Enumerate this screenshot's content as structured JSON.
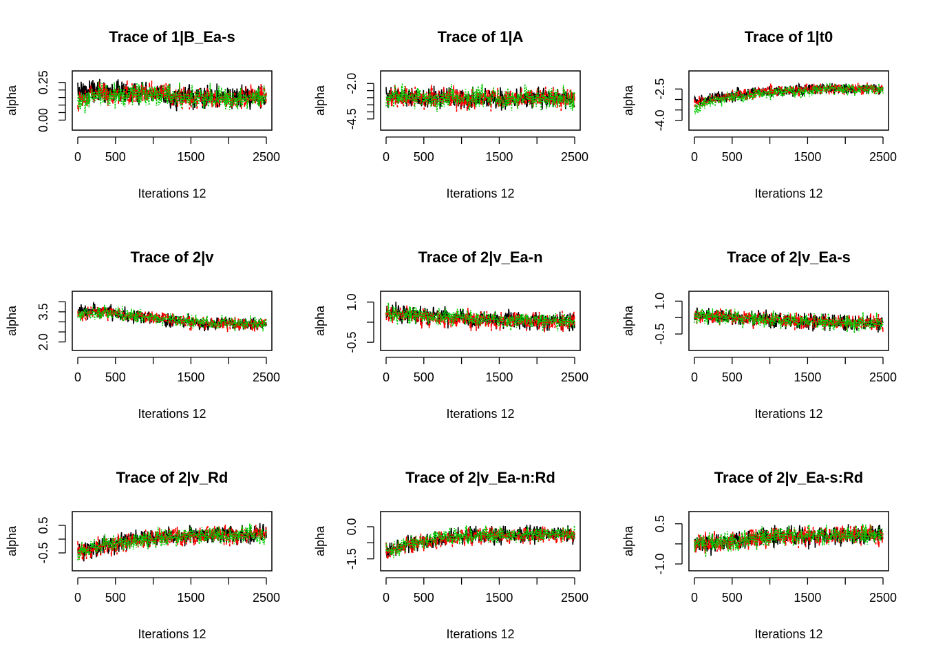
{
  "chart_data": [
    {
      "type": "line",
      "title": "Trace of 1|B_Ea-s",
      "xlabel": "Iterations 12",
      "ylabel": "alpha",
      "xlim": [
        0,
        2500
      ],
      "ylim": [
        -0.03,
        0.29
      ],
      "x_ticks": [
        0,
        500,
        1000,
        1500,
        2000,
        2500
      ],
      "x_tick_labels": [
        "0",
        "500",
        "",
        "1500",
        "",
        "2500"
      ],
      "y_ticks": [
        0.0,
        0.05,
        0.1,
        0.15,
        0.2,
        0.25
      ],
      "y_tick_labels": [
        "0.00",
        "",
        "",
        "",
        "",
        "0.25"
      ],
      "series": [
        {
          "color": "#000000",
          "style": "solid",
          "values": [
            0.19,
            0.2,
            0.19,
            0.18,
            0.17,
            0.15,
            0.15,
            0.15,
            0.15,
            0.16,
            0.15
          ]
        },
        {
          "color": "#ff0000",
          "style": "dashed",
          "values": [
            0.12,
            0.18,
            0.18,
            0.18,
            0.18,
            0.16,
            0.15,
            0.15,
            0.14,
            0.15,
            0.16
          ]
        },
        {
          "color": "#00cd00",
          "style": "dotted",
          "values": [
            0.1,
            0.16,
            0.17,
            0.17,
            0.16,
            0.16,
            0.15,
            0.15,
            0.14,
            0.14,
            0.15
          ]
        }
      ],
      "noise": 0.045
    },
    {
      "type": "line",
      "title": "Trace of 1|A",
      "xlabel": "Iterations 12",
      "ylabel": "alpha",
      "xlim": [
        0,
        2500
      ],
      "ylim": [
        -4.9,
        -1.5
      ],
      "x_ticks": [
        0,
        500,
        1000,
        1500,
        2000,
        2500
      ],
      "x_tick_labels": [
        "0",
        "500",
        "",
        "1500",
        "",
        "2500"
      ],
      "y_ticks": [
        -4.5,
        -4.0,
        -3.5,
        -3.0,
        -2.5,
        -2.0
      ],
      "y_tick_labels": [
        "-4.5",
        "",
        "",
        "",
        "",
        "-2.0"
      ],
      "series": [
        {
          "color": "#000000",
          "style": "solid",
          "values": [
            -2.8,
            -2.9,
            -3.0,
            -3.0,
            -3.1,
            -3.1,
            -3.1,
            -3.1,
            -3.0,
            -3.0,
            -3.0
          ]
        },
        {
          "color": "#ff0000",
          "style": "dashed",
          "values": [
            -3.0,
            -3.0,
            -3.0,
            -3.0,
            -3.1,
            -3.1,
            -3.1,
            -3.1,
            -3.0,
            -3.1,
            -3.0
          ]
        },
        {
          "color": "#00cd00",
          "style": "dotted",
          "values": [
            -3.0,
            -2.8,
            -3.0,
            -3.0,
            -3.0,
            -3.0,
            -3.0,
            -3.0,
            -3.0,
            -3.0,
            -3.0
          ]
        }
      ],
      "noise": 0.45
    },
    {
      "type": "line",
      "title": "Trace of 1|t0",
      "xlabel": "Iterations 12",
      "ylabel": "alpha",
      "xlim": [
        0,
        2500
      ],
      "ylim": [
        -4.2,
        -1.9
      ],
      "x_ticks": [
        0,
        500,
        1000,
        1500,
        2000,
        2500
      ],
      "x_tick_labels": [
        "0",
        "500",
        "",
        "1500",
        "",
        "2500"
      ],
      "y_ticks": [
        -4.0,
        -3.5,
        -3.0,
        -2.5
      ],
      "y_tick_labels": [
        "-4.0",
        "",
        "",
        "-2.5"
      ],
      "series": [
        {
          "color": "#000000",
          "style": "solid",
          "values": [
            -3.1,
            -2.9,
            -2.8,
            -2.7,
            -2.6,
            -2.6,
            -2.5,
            -2.5,
            -2.5,
            -2.5,
            -2.5
          ]
        },
        {
          "color": "#ff0000",
          "style": "dashed",
          "values": [
            -3.2,
            -3.0,
            -2.8,
            -2.7,
            -2.6,
            -2.6,
            -2.5,
            -2.5,
            -2.5,
            -2.5,
            -2.5
          ]
        },
        {
          "color": "#00cd00",
          "style": "dotted",
          "values": [
            -3.5,
            -3.0,
            -2.9,
            -2.8,
            -2.7,
            -2.6,
            -2.6,
            -2.5,
            -2.5,
            -2.5,
            -2.5
          ]
        }
      ],
      "noise": 0.17
    },
    {
      "type": "line",
      "title": "Trace of 2|v",
      "xlabel": "Iterations 12",
      "ylabel": "alpha",
      "xlim": [
        0,
        2500
      ],
      "ylim": [
        1.85,
        4.25
      ],
      "x_ticks": [
        0,
        500,
        1000,
        1500,
        2000,
        2500
      ],
      "x_tick_labels": [
        "0",
        "500",
        "",
        "1500",
        "",
        "2500"
      ],
      "y_ticks": [
        2.0,
        2.5,
        3.0,
        3.5,
        4.0
      ],
      "y_tick_labels": [
        "2.0",
        "",
        "",
        "3.5",
        ""
      ],
      "series": [
        {
          "color": "#000000",
          "style": "solid",
          "values": [
            3.5,
            3.6,
            3.4,
            3.3,
            3.2,
            3.1,
            3.0,
            2.9,
            2.9,
            2.9,
            2.9
          ]
        },
        {
          "color": "#ff0000",
          "style": "dashed",
          "values": [
            3.3,
            3.5,
            3.4,
            3.3,
            3.2,
            3.1,
            3.0,
            2.9,
            2.9,
            2.9,
            2.9
          ]
        },
        {
          "color": "#00cd00",
          "style": "dotted",
          "values": [
            3.4,
            3.5,
            3.4,
            3.3,
            3.2,
            3.1,
            3.0,
            3.0,
            2.9,
            2.9,
            2.9
          ]
        }
      ],
      "noise": 0.2
    },
    {
      "type": "line",
      "title": "Trace of 2|v_Ea-n",
      "xlabel": "Iterations 12",
      "ylabel": "alpha",
      "xlim": [
        0,
        2500
      ],
      "ylim": [
        -0.6,
        1.2
      ],
      "x_ticks": [
        0,
        500,
        1000,
        1500,
        2000,
        2500
      ],
      "x_tick_labels": [
        "0",
        "500",
        "",
        "1500",
        "",
        "2500"
      ],
      "y_ticks": [
        -0.5,
        0.25,
        1.0
      ],
      "y_tick_labels": [
        "-0.5",
        "",
        "1.0"
      ],
      "series": [
        {
          "color": "#000000",
          "style": "solid",
          "values": [
            0.55,
            0.6,
            0.5,
            0.45,
            0.4,
            0.35,
            0.35,
            0.3,
            0.3,
            0.3,
            0.3
          ]
        },
        {
          "color": "#ff0000",
          "style": "dashed",
          "values": [
            0.5,
            0.55,
            0.45,
            0.4,
            0.35,
            0.35,
            0.3,
            0.3,
            0.3,
            0.25,
            0.3
          ]
        },
        {
          "color": "#00cd00",
          "style": "dotted",
          "values": [
            0.55,
            0.55,
            0.5,
            0.45,
            0.4,
            0.4,
            0.35,
            0.35,
            0.3,
            0.3,
            0.3
          ]
        }
      ],
      "noise": 0.2
    },
    {
      "type": "line",
      "title": "Trace of 2|v_Ea-s",
      "xlabel": "Iterations 12",
      "ylabel": "alpha",
      "xlim": [
        0,
        2500
      ],
      "ylim": [
        -1.0,
        1.2
      ],
      "x_ticks": [
        0,
        500,
        1000,
        1500,
        2000,
        2500
      ],
      "x_tick_labels": [
        "0",
        "500",
        "",
        "1500",
        "",
        "2500"
      ],
      "y_ticks": [
        -0.5,
        0.25,
        1.0
      ],
      "y_tick_labels": [
        "-0.5",
        "",
        "1.0"
      ],
      "series": [
        {
          "color": "#000000",
          "style": "solid",
          "values": [
            0.35,
            0.3,
            0.25,
            0.2,
            0.15,
            0.1,
            0.05,
            0.05,
            0.0,
            0.0,
            0.0
          ]
        },
        {
          "color": "#ff0000",
          "style": "dashed",
          "values": [
            0.3,
            0.35,
            0.25,
            0.2,
            0.15,
            0.1,
            0.05,
            0.05,
            0.0,
            0.0,
            0.0
          ]
        },
        {
          "color": "#00cd00",
          "style": "dotted",
          "values": [
            0.3,
            0.3,
            0.25,
            0.2,
            0.15,
            0.1,
            0.05,
            0.0,
            0.0,
            0.0,
            0.0
          ]
        }
      ],
      "noise": 0.22
    },
    {
      "type": "line",
      "title": "Trace of 2|v_Rd",
      "xlabel": "Iterations 12",
      "ylabel": "alpha",
      "xlim": [
        0,
        2500
      ],
      "ylim": [
        -0.95,
        0.8
      ],
      "x_ticks": [
        0,
        500,
        1000,
        1500,
        2000,
        2500
      ],
      "x_tick_labels": [
        "0",
        "500",
        "",
        "1500",
        "",
        "2500"
      ],
      "y_ticks": [
        -0.5,
        0.0,
        0.5
      ],
      "y_tick_labels": [
        "-0.5",
        "",
        "0.5"
      ],
      "series": [
        {
          "color": "#000000",
          "style": "solid",
          "values": [
            -0.45,
            -0.3,
            -0.15,
            0.0,
            0.05,
            0.1,
            0.15,
            0.15,
            0.15,
            0.15,
            0.2
          ]
        },
        {
          "color": "#ff0000",
          "style": "dashed",
          "values": [
            -0.4,
            -0.35,
            -0.2,
            -0.05,
            0.05,
            0.1,
            0.1,
            0.15,
            0.15,
            0.15,
            0.2
          ]
        },
        {
          "color": "#00cd00",
          "style": "dotted",
          "values": [
            -0.5,
            -0.3,
            -0.15,
            -0.05,
            0.05,
            0.1,
            0.15,
            0.15,
            0.15,
            0.15,
            0.15
          ]
        }
      ],
      "noise": 0.2
    },
    {
      "type": "line",
      "title": "Trace of 2|v_Ea-n:Rd",
      "xlabel": "Iterations 12",
      "ylabel": "alpha",
      "xlim": [
        0,
        2500
      ],
      "ylim": [
        -1.8,
        0.45
      ],
      "x_ticks": [
        0,
        500,
        1000,
        1500,
        2000,
        2500
      ],
      "x_tick_labels": [
        "0",
        "500",
        "",
        "1500",
        "",
        "2500"
      ],
      "y_ticks": [
        -1.5,
        -0.75,
        0.0
      ],
      "y_tick_labels": [
        "-1.5",
        "",
        "0.0"
      ],
      "series": [
        {
          "color": "#000000",
          "style": "solid",
          "values": [
            -1.1,
            -0.85,
            -0.65,
            -0.5,
            -0.45,
            -0.4,
            -0.4,
            -0.35,
            -0.35,
            -0.35,
            -0.35
          ]
        },
        {
          "color": "#ff0000",
          "style": "dashed",
          "values": [
            -1.2,
            -0.9,
            -0.7,
            -0.55,
            -0.5,
            -0.45,
            -0.45,
            -0.4,
            -0.4,
            -0.4,
            -0.4
          ]
        },
        {
          "color": "#00cd00",
          "style": "dotted",
          "values": [
            -1.2,
            -0.85,
            -0.65,
            -0.5,
            -0.45,
            -0.4,
            -0.4,
            -0.35,
            -0.35,
            -0.35,
            -0.35
          ]
        }
      ],
      "noise": 0.24
    },
    {
      "type": "line",
      "title": "Trace of 2|v_Ea-s:Rd",
      "xlabel": "Iterations 12",
      "ylabel": "alpha",
      "xlim": [
        0,
        2500
      ],
      "ylim": [
        -1.05,
        0.75
      ],
      "x_ticks": [
        0,
        500,
        1000,
        1500,
        2000,
        2500
      ],
      "x_tick_labels": [
        "0",
        "500",
        "",
        "1500",
        "",
        "2500"
      ],
      "y_ticks": [
        -1.0,
        -0.25,
        0.5
      ],
      "y_tick_labels": [
        "-1.0",
        "",
        "0.5"
      ],
      "series": [
        {
          "color": "#000000",
          "style": "solid",
          "values": [
            -0.2,
            -0.2,
            -0.15,
            -0.05,
            0.0,
            0.05,
            0.05,
            0.05,
            0.1,
            0.1,
            0.1
          ]
        },
        {
          "color": "#ff0000",
          "style": "dashed",
          "values": [
            -0.25,
            -0.2,
            -0.15,
            -0.05,
            0.0,
            0.05,
            0.05,
            0.05,
            0.1,
            0.1,
            0.1
          ]
        },
        {
          "color": "#00cd00",
          "style": "dotted",
          "values": [
            -0.25,
            -0.25,
            -0.15,
            -0.05,
            0.0,
            0.05,
            0.05,
            0.1,
            0.1,
            0.1,
            0.1
          ]
        }
      ],
      "noise": 0.22
    }
  ]
}
